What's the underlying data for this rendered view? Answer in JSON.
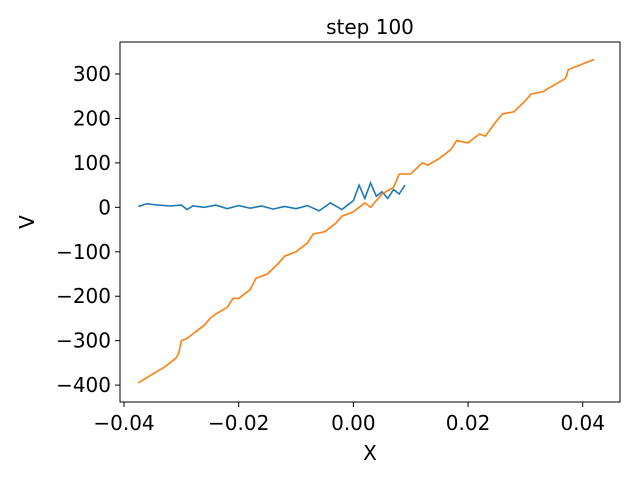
{
  "chart_data": {
    "type": "line",
    "title": "step 100",
    "x_label": "X",
    "y_label": "V",
    "xlim": [
      -0.0407,
      0.0465
    ],
    "ylim": [
      -438,
      372
    ],
    "xticks": [
      {
        "value": -0.04,
        "label": "−0.04"
      },
      {
        "value": -0.02,
        "label": "−0.02"
      },
      {
        "value": 0,
        "label": "0.00"
      },
      {
        "value": 0.02,
        "label": "0.02"
      },
      {
        "value": 0.04,
        "label": "0.04"
      }
    ],
    "yticks": [
      {
        "value": -400,
        "label": "−400"
      },
      {
        "value": -300,
        "label": "−300"
      },
      {
        "value": -200,
        "label": "−200"
      },
      {
        "value": -100,
        "label": "−100"
      },
      0,
      100,
      200,
      300
    ],
    "series": [
      {
        "color": "#1f77b4",
        "x": [
          -0.0375,
          -0.036,
          -0.034,
          -0.032,
          -0.03,
          -0.029,
          -0.028,
          -0.026,
          -0.024,
          -0.022,
          -0.02,
          -0.018,
          -0.016,
          -0.014,
          -0.012,
          -0.01,
          -0.008,
          -0.006,
          -0.004,
          -0.002,
          0,
          0.001,
          0.002,
          0.003,
          0.004,
          0.005,
          0.006,
          0.007,
          0.008,
          0.009
        ],
        "values": [
          2,
          8,
          5,
          3,
          5,
          -5,
          3,
          0,
          5,
          -3,
          4,
          -2,
          3,
          -4,
          2,
          -3,
          4,
          -8,
          10,
          -5,
          15,
          50,
          20,
          55,
          25,
          35,
          20,
          40,
          30,
          50
        ]
      },
      {
        "color": "#ff7f0e",
        "x": [
          -0.0375,
          -0.035,
          -0.033,
          -0.031,
          -0.0305,
          -0.03,
          -0.029,
          -0.028,
          -0.027,
          -0.026,
          -0.025,
          -0.024,
          -0.022,
          -0.021,
          -0.02,
          -0.018,
          -0.017,
          -0.015,
          -0.013,
          -0.012,
          -0.01,
          -0.008,
          -0.007,
          -0.005,
          -0.003,
          -0.002,
          0,
          0.002,
          0.003,
          0.005,
          0.007,
          0.008,
          0.01,
          0.012,
          0.013,
          0.015,
          0.017,
          0.018,
          0.02,
          0.022,
          0.023,
          0.025,
          0.026,
          0.028,
          0.03,
          0.031,
          0.033,
          0.035,
          0.037,
          0.0375,
          0.042
        ],
        "values": [
          -395,
          -375,
          -360,
          -340,
          -330,
          -300,
          -295,
          -285,
          -275,
          -265,
          -250,
          -240,
          -225,
          -205,
          -205,
          -185,
          -160,
          -150,
          -125,
          -110,
          -100,
          -80,
          -60,
          -55,
          -35,
          -20,
          -10,
          10,
          0,
          30,
          45,
          75,
          75,
          100,
          95,
          110,
          130,
          150,
          145,
          165,
          160,
          195,
          210,
          215,
          240,
          255,
          260,
          275,
          290,
          310,
          333
        ]
      }
    ]
  }
}
